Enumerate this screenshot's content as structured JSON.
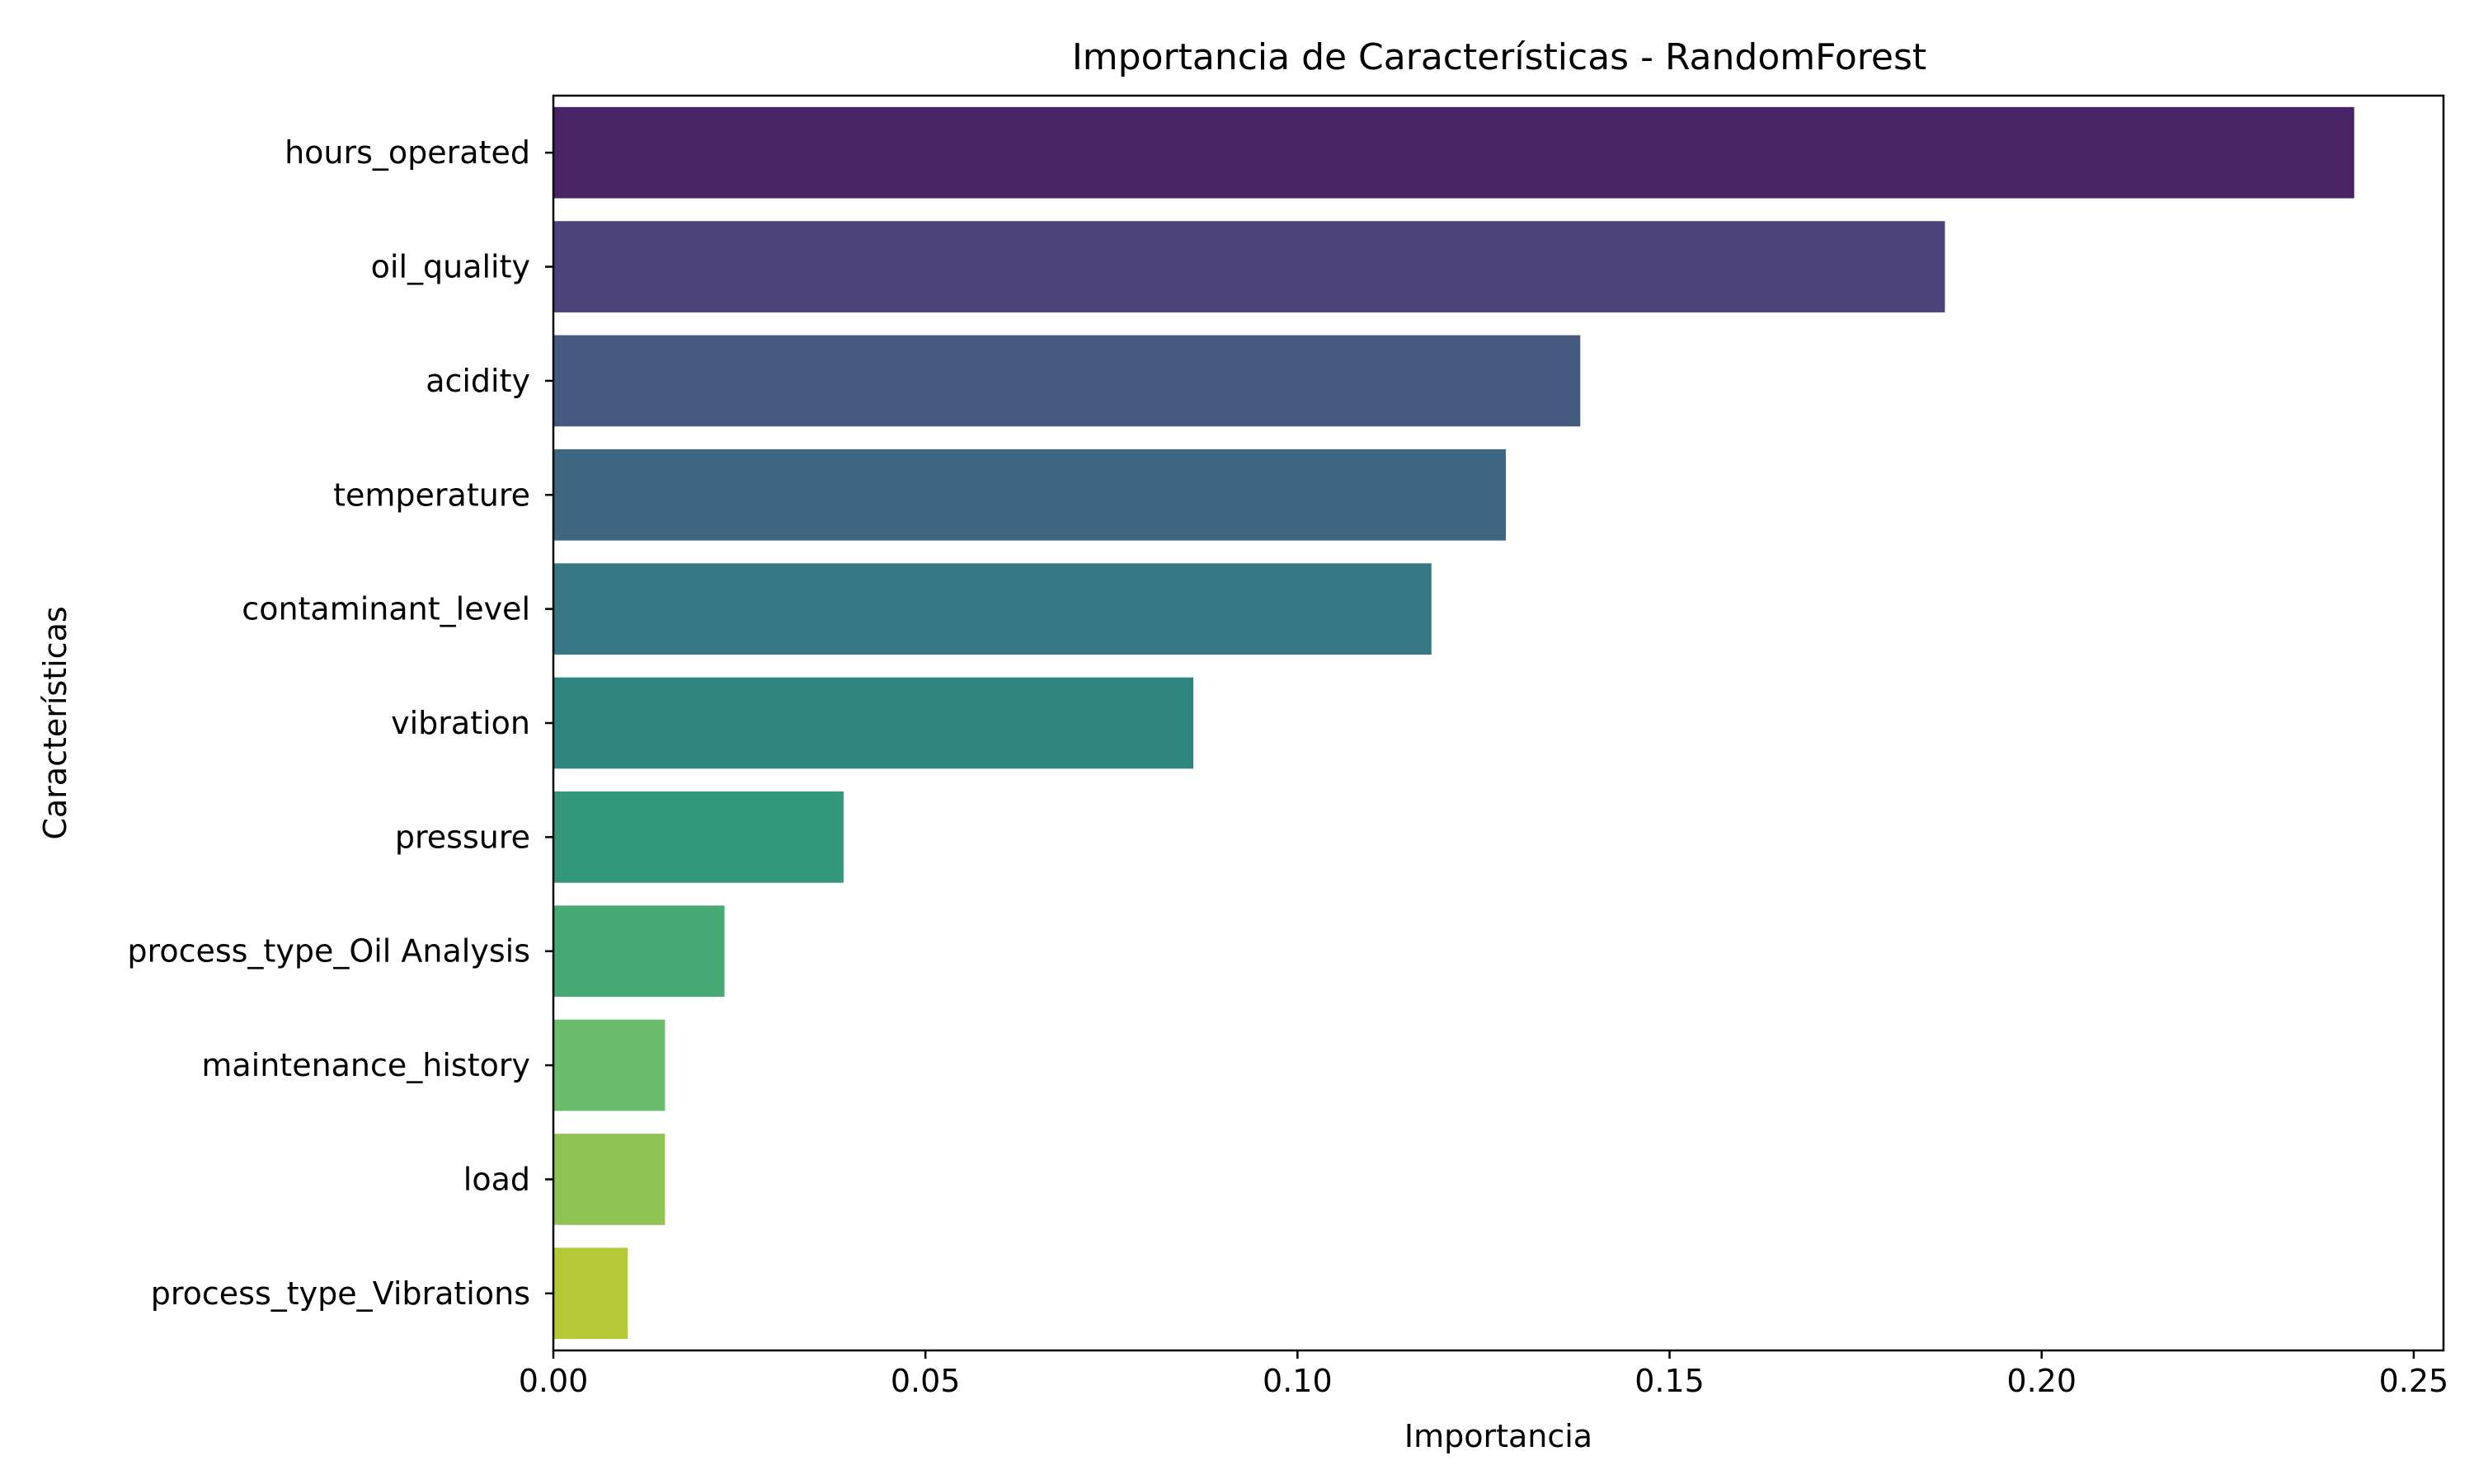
{
  "chart_data": {
    "type": "bar",
    "orientation": "horizontal",
    "title": "Importancia de Características - RandomForest",
    "xlabel": "Importancia",
    "ylabel": "Características",
    "xlim": [
      0,
      0.254
    ],
    "xticks": [
      "0.00",
      "0.05",
      "0.10",
      "0.15",
      "0.20",
      "0.25"
    ],
    "grid": false,
    "legend": "none",
    "categories": [
      "hours_operated",
      "oil_quality",
      "acidity",
      "temperature",
      "contaminant_level",
      "vibration",
      "pressure",
      "process_type_Oil Analysis",
      "maintenance_history",
      "load",
      "process_type_Vibrations"
    ],
    "values": [
      0.242,
      0.187,
      0.138,
      0.128,
      0.118,
      0.086,
      0.039,
      0.023,
      0.015,
      0.015,
      0.01
    ],
    "colors": [
      "#482467",
      "#4b437a",
      "#455a7f",
      "#3f6681",
      "#377783",
      "#2f8680",
      "#339779",
      "#46a974",
      "#6bbd6b",
      "#8fc455",
      "#b5c835"
    ]
  }
}
